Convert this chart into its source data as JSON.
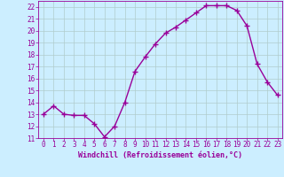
{
  "x": [
    0,
    1,
    2,
    3,
    4,
    5,
    6,
    7,
    8,
    9,
    10,
    11,
    12,
    13,
    14,
    15,
    16,
    17,
    18,
    19,
    20,
    21,
    22,
    23
  ],
  "y": [
    13.0,
    13.7,
    13.0,
    12.9,
    12.9,
    12.2,
    11.1,
    12.0,
    14.0,
    16.6,
    17.8,
    18.9,
    19.8,
    20.3,
    20.9,
    21.5,
    22.1,
    22.1,
    22.1,
    21.7,
    20.4,
    17.2,
    15.7,
    14.6
  ],
  "line_color": "#990099",
  "marker": "+",
  "marker_size": 4,
  "xlabel": "Windchill (Refroidissement éolien,°C)",
  "xlim": [
    -0.5,
    23.5
  ],
  "ylim": [
    11,
    22.5
  ],
  "yticks": [
    11,
    12,
    13,
    14,
    15,
    16,
    17,
    18,
    19,
    20,
    21,
    22
  ],
  "xticks": [
    0,
    1,
    2,
    3,
    4,
    5,
    6,
    7,
    8,
    9,
    10,
    11,
    12,
    13,
    14,
    15,
    16,
    17,
    18,
    19,
    20,
    21,
    22,
    23
  ],
  "bg_color": "#cceeff",
  "grid_major_color": "#b0cccc",
  "grid_minor_color": "#cce0dd",
  "line_width": 1.0,
  "font_color": "#990099",
  "tick_fontsize": 5.5,
  "xlabel_fontsize": 6.0
}
